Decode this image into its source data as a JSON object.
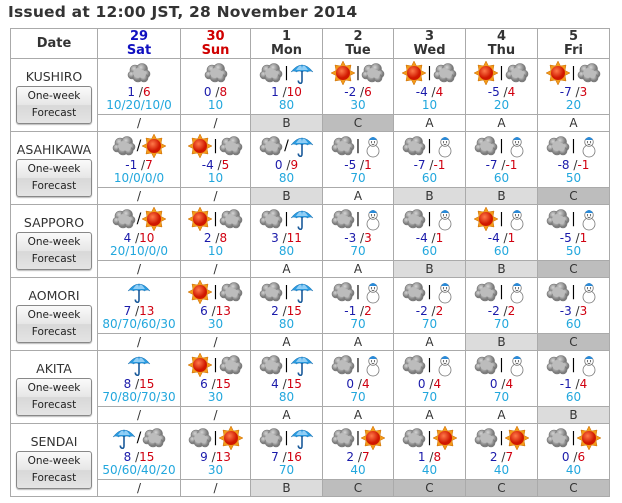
{
  "title": "Issued at 12:00 JST, 28 November 2014",
  "header": {
    "date_label": "Date",
    "days": [
      {
        "num": "29",
        "dow": "Sat",
        "kind": "sat"
      },
      {
        "num": "30",
        "dow": "Sun",
        "kind": "sun"
      },
      {
        "num": "1",
        "dow": "Mon",
        "kind": ""
      },
      {
        "num": "2",
        "dow": "Tue",
        "kind": ""
      },
      {
        "num": "3",
        "dow": "Wed",
        "kind": ""
      },
      {
        "num": "4",
        "dow": "Thu",
        "kind": ""
      },
      {
        "num": "5",
        "dow": "Fri",
        "kind": ""
      }
    ]
  },
  "button": {
    "line1": "One-week",
    "line2": "Forecast"
  },
  "colors": {
    "sat": "#1010c0",
    "sun": "#d00000",
    "min_temp": "#1a1aaa",
    "max_temp": "#d00010",
    "pop": "#22a7dd",
    "reliability_B": "#dcdcdc",
    "reliability_C": "#bdbdbd"
  },
  "cities": [
    {
      "name": "KUSHIRO",
      "days": [
        {
          "icons": [
            "cloud"
          ],
          "sep": "",
          "min": "1",
          "max": "6",
          "pop": "10/20/10/0",
          "rel": "/"
        },
        {
          "icons": [
            "cloud"
          ],
          "sep": "",
          "min": "0",
          "max": "8",
          "pop": "10",
          "rel": "/"
        },
        {
          "icons": [
            "cloud",
            "rain"
          ],
          "sep": "|",
          "min": "1",
          "max": "10",
          "pop": "80",
          "rel": "B"
        },
        {
          "icons": [
            "sun",
            "cloud"
          ],
          "sep": "|",
          "min": "-2",
          "max": "6",
          "pop": "30",
          "rel": "C"
        },
        {
          "icons": [
            "sun",
            "cloud"
          ],
          "sep": "|",
          "min": "-4",
          "max": "4",
          "pop": "10",
          "rel": "A"
        },
        {
          "icons": [
            "sun",
            "cloud"
          ],
          "sep": "|",
          "min": "-5",
          "max": "4",
          "pop": "20",
          "rel": "A"
        },
        {
          "icons": [
            "sun",
            "cloud"
          ],
          "sep": "|",
          "min": "-7",
          "max": "3",
          "pop": "20",
          "rel": "A"
        }
      ]
    },
    {
      "name": "ASAHIKAWA",
      "days": [
        {
          "icons": [
            "cloud",
            "sun"
          ],
          "sep": "/",
          "min": "-1",
          "max": "7",
          "pop": "10/0/0/0",
          "rel": "/"
        },
        {
          "icons": [
            "sun",
            "cloud"
          ],
          "sep": "|",
          "min": "-4",
          "max": "5",
          "pop": "10",
          "rel": "/"
        },
        {
          "icons": [
            "cloud",
            "rain"
          ],
          "sep": "/",
          "min": "0",
          "max": "9",
          "pop": "80",
          "rel": "B"
        },
        {
          "icons": [
            "cloud",
            "snow"
          ],
          "sep": "|",
          "min": "-5",
          "max": "1",
          "pop": "70",
          "rel": "A"
        },
        {
          "icons": [
            "cloud",
            "snow"
          ],
          "sep": "|",
          "min": "-7",
          "max": "-1",
          "pop": "60",
          "rel": "B"
        },
        {
          "icons": [
            "cloud",
            "snow"
          ],
          "sep": "|",
          "min": "-7",
          "max": "-1",
          "pop": "60",
          "rel": "B"
        },
        {
          "icons": [
            "cloud",
            "snow"
          ],
          "sep": "|",
          "min": "-8",
          "max": "-1",
          "pop": "50",
          "rel": "C"
        }
      ]
    },
    {
      "name": "SAPPORO",
      "days": [
        {
          "icons": [
            "cloud",
            "sun"
          ],
          "sep": "/",
          "min": "4",
          "max": "10",
          "pop": "20/10/0/0",
          "rel": "/"
        },
        {
          "icons": [
            "sun",
            "cloud"
          ],
          "sep": "|",
          "min": "2",
          "max": "8",
          "pop": "10",
          "rel": "/"
        },
        {
          "icons": [
            "cloud",
            "rain"
          ],
          "sep": "|",
          "min": "3",
          "max": "11",
          "pop": "80",
          "rel": "A"
        },
        {
          "icons": [
            "cloud",
            "snow"
          ],
          "sep": "|",
          "min": "-3",
          "max": "3",
          "pop": "70",
          "rel": "A"
        },
        {
          "icons": [
            "cloud",
            "snow"
          ],
          "sep": "|",
          "min": "-4",
          "max": "1",
          "pop": "60",
          "rel": "B"
        },
        {
          "icons": [
            "sun",
            "snow"
          ],
          "sep": "|",
          "min": "-4",
          "max": "1",
          "pop": "60",
          "rel": "B"
        },
        {
          "icons": [
            "cloud",
            "snow"
          ],
          "sep": "|",
          "min": "-5",
          "max": "1",
          "pop": "50",
          "rel": "C"
        }
      ]
    },
    {
      "name": "AOMORI",
      "days": [
        {
          "icons": [
            "rain"
          ],
          "sep": "",
          "min": "7",
          "max": "13",
          "pop": "80/70/60/30",
          "rel": "/"
        },
        {
          "icons": [
            "sun",
            "cloud"
          ],
          "sep": "|",
          "min": "6",
          "max": "13",
          "pop": "30",
          "rel": "/"
        },
        {
          "icons": [
            "cloud",
            "rain"
          ],
          "sep": "|",
          "min": "2",
          "max": "15",
          "pop": "80",
          "rel": "A"
        },
        {
          "icons": [
            "cloud",
            "snow"
          ],
          "sep": "|",
          "min": "-1",
          "max": "2",
          "pop": "70",
          "rel": "A"
        },
        {
          "icons": [
            "cloud",
            "snow"
          ],
          "sep": "|",
          "min": "-2",
          "max": "2",
          "pop": "70",
          "rel": "A"
        },
        {
          "icons": [
            "cloud",
            "snow"
          ],
          "sep": "|",
          "min": "-2",
          "max": "2",
          "pop": "70",
          "rel": "B"
        },
        {
          "icons": [
            "cloud",
            "snow"
          ],
          "sep": "|",
          "min": "-3",
          "max": "3",
          "pop": "60",
          "rel": "C"
        }
      ]
    },
    {
      "name": "AKITA",
      "days": [
        {
          "icons": [
            "rain"
          ],
          "sep": "",
          "min": "8",
          "max": "15",
          "pop": "70/80/70/30",
          "rel": "/"
        },
        {
          "icons": [
            "sun",
            "cloud"
          ],
          "sep": "|",
          "min": "6",
          "max": "15",
          "pop": "30",
          "rel": "/"
        },
        {
          "icons": [
            "cloud",
            "rain"
          ],
          "sep": "|",
          "min": "4",
          "max": "15",
          "pop": "80",
          "rel": "A"
        },
        {
          "icons": [
            "cloud",
            "snow"
          ],
          "sep": "|",
          "min": "0",
          "max": "4",
          "pop": "70",
          "rel": "A"
        },
        {
          "icons": [
            "cloud",
            "snow"
          ],
          "sep": "|",
          "min": "0",
          "max": "4",
          "pop": "70",
          "rel": "A"
        },
        {
          "icons": [
            "cloud",
            "snow"
          ],
          "sep": "|",
          "min": "0",
          "max": "4",
          "pop": "70",
          "rel": "A"
        },
        {
          "icons": [
            "cloud",
            "snow"
          ],
          "sep": "|",
          "min": "-1",
          "max": "4",
          "pop": "60",
          "rel": "B"
        }
      ]
    },
    {
      "name": "SENDAI",
      "days": [
        {
          "icons": [
            "rain",
            "cloud"
          ],
          "sep": "/",
          "min": "8",
          "max": "15",
          "pop": "50/60/40/20",
          "rel": "/"
        },
        {
          "icons": [
            "cloud",
            "sun"
          ],
          "sep": "|",
          "min": "9",
          "max": "13",
          "pop": "30",
          "rel": "/"
        },
        {
          "icons": [
            "cloud",
            "rain"
          ],
          "sep": "|",
          "min": "7",
          "max": "16",
          "pop": "70",
          "rel": "B"
        },
        {
          "icons": [
            "cloud",
            "sun"
          ],
          "sep": "|",
          "min": "2",
          "max": "7",
          "pop": "40",
          "rel": "C"
        },
        {
          "icons": [
            "cloud",
            "sun"
          ],
          "sep": "|",
          "min": "1",
          "max": "8",
          "pop": "40",
          "rel": "C"
        },
        {
          "icons": [
            "cloud",
            "sun"
          ],
          "sep": "|",
          "min": "2",
          "max": "7",
          "pop": "40",
          "rel": "C"
        },
        {
          "icons": [
            "cloud",
            "sun"
          ],
          "sep": "|",
          "min": "0",
          "max": "6",
          "pop": "40",
          "rel": "C"
        }
      ]
    }
  ]
}
